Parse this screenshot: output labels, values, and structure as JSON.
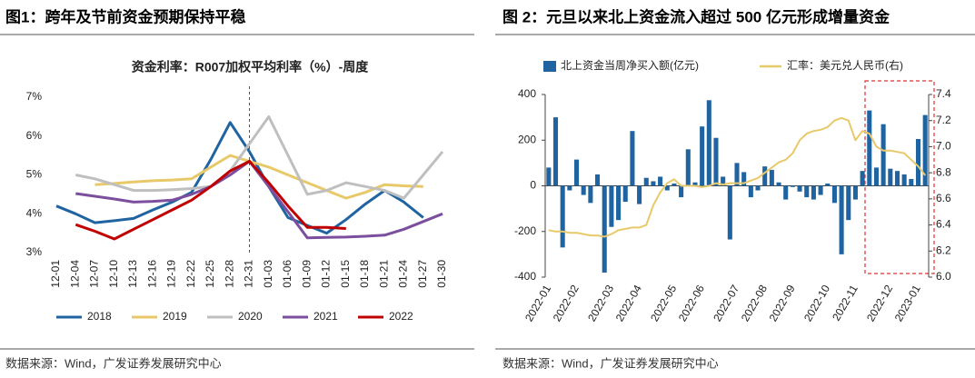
{
  "figures": [
    {
      "caption": "图1：跨年及节前资金预期保持平稳",
      "source": "数据来源：Wind，广发证券发展研究中心"
    },
    {
      "caption": "图 2：元旦以来北上资金流入超过 500 亿元形成增量资金",
      "source": "数据来源：Wind，广发证券发展研究中心"
    }
  ],
  "chart_data": [
    {
      "type": "line",
      "title": "资金利率：R007加权平均利率（%）-周度",
      "grid": false,
      "legend": "bottom",
      "vline": "12-31",
      "categories": [
        "12-01",
        "12-04",
        "12-07",
        "12-10",
        "12-13",
        "12-16",
        "12-19",
        "12-22",
        "12-25",
        "12-28",
        "12-31",
        "01-03",
        "01-06",
        "01-09",
        "01-12",
        "01-15",
        "01-18",
        "01-21",
        "01-24",
        "01-27",
        "01-30"
      ],
      "ylim": [
        3,
        7
      ],
      "yticks": [
        {
          "value": 3,
          "label": "3%"
        },
        {
          "value": 4,
          "label": "4%"
        },
        {
          "value": 5,
          "label": "5%"
        },
        {
          "value": 6,
          "label": "6%"
        },
        {
          "value": 7,
          "label": "7%"
        }
      ],
      "series": [
        {
          "name": "2018",
          "color": "#1f64a0",
          "values": [
            4.2,
            4.0,
            3.77,
            3.82,
            3.88,
            4.1,
            4.3,
            4.55,
            5.4,
            6.35,
            5.6,
            4.7,
            3.9,
            3.7,
            3.5,
            3.85,
            4.25,
            4.6,
            4.3,
            3.9,
            null
          ]
        },
        {
          "name": "2019",
          "color": "#e8c96a",
          "values": [
            null,
            null,
            4.75,
            4.78,
            4.82,
            4.85,
            4.87,
            4.9,
            5.2,
            5.5,
            5.35,
            5.2,
            5.0,
            4.8,
            4.6,
            4.4,
            4.55,
            4.75,
            4.72,
            4.7,
            null
          ]
        },
        {
          "name": "2020",
          "color": "#bfbfbf",
          "values": [
            null,
            5.0,
            4.9,
            4.75,
            4.6,
            4.6,
            4.62,
            4.65,
            4.7,
            5.1,
            5.8,
            6.5,
            5.5,
            4.5,
            4.6,
            4.8,
            4.7,
            4.6,
            4.4,
            5.0,
            5.6
          ]
        },
        {
          "name": "2021",
          "color": "#7b4e9e",
          "values": [
            null,
            4.52,
            4.45,
            4.38,
            4.3,
            4.32,
            4.35,
            4.5,
            4.7,
            5.0,
            5.35,
            4.7,
            4.05,
            3.38,
            3.39,
            3.4,
            3.42,
            3.45,
            3.6,
            3.8,
            4.0
          ]
        },
        {
          "name": "2022",
          "color": "#c00000",
          "values": [
            null,
            3.72,
            3.55,
            3.35,
            3.6,
            3.85,
            4.1,
            4.35,
            4.7,
            5.1,
            5.35,
            4.8,
            4.2,
            3.65,
            3.65,
            3.62,
            null,
            null,
            null,
            null,
            null
          ]
        }
      ]
    },
    {
      "type": "bar",
      "grid": false,
      "legend": "top",
      "categories": [
        "2022-01",
        null,
        null,
        null,
        "2022-02",
        null,
        null,
        null,
        null,
        "2022-03",
        null,
        null,
        null,
        "2022-04",
        null,
        null,
        null,
        null,
        "2022-05",
        null,
        null,
        null,
        "2022-06",
        null,
        null,
        null,
        null,
        "2022-07",
        null,
        null,
        null,
        "2022-08",
        null,
        null,
        null,
        "2022-09",
        null,
        null,
        null,
        null,
        "2022-10",
        null,
        null,
        null,
        "2022-11",
        null,
        null,
        null,
        null,
        "2022-12",
        null,
        null,
        null,
        "2023-01",
        null
      ],
      "ylim": [
        -400,
        400
      ],
      "yticks": [
        -400,
        -200,
        0,
        200,
        400
      ],
      "y2lim": [
        6.0,
        7.4
      ],
      "y2ticks": [
        {
          "value": 6.0,
          "label": "6.0"
        },
        {
          "value": 6.2,
          "label": "6.2"
        },
        {
          "value": 6.4,
          "label": "6.4"
        },
        {
          "value": 6.6,
          "label": "6.6"
        },
        {
          "value": 6.8,
          "label": "6.8"
        },
        {
          "value": 7.0,
          "label": "7.0"
        },
        {
          "value": 7.2,
          "label": "7.2"
        },
        {
          "value": 7.4,
          "label": "7.4"
        }
      ],
      "series": [
        {
          "name": "北上资金当周净买入额(亿元)",
          "color": "#1f64a0",
          "values": [
            80,
            300,
            -270,
            -20,
            115,
            -40,
            -75,
            50,
            -380,
            -180,
            -150,
            -70,
            240,
            -80,
            35,
            20,
            40,
            -20,
            10,
            -50,
            160,
            15,
            260,
            375,
            210,
            40,
            -235,
            100,
            60,
            -50,
            -20,
            85,
            70,
            15,
            -60,
            -5,
            -25,
            -50,
            -60,
            -40,
            10,
            -75,
            -300,
            -150,
            -60,
            65,
            330,
            80,
            270,
            75,
            65,
            50,
            30,
            205,
            310
          ]
        },
        {
          "name": "汇率：美元兑人民币(右)",
          "color": "#e8c96a",
          "axis": "y2",
          "values": [
            6.36,
            6.35,
            6.35,
            6.34,
            6.34,
            6.33,
            6.32,
            6.32,
            6.31,
            6.33,
            6.36,
            6.37,
            6.38,
            6.38,
            6.4,
            6.55,
            6.65,
            6.72,
            6.75,
            6.7,
            6.7,
            6.7,
            6.69,
            6.7,
            6.72,
            6.71,
            6.72,
            6.72,
            6.72,
            6.74,
            6.76,
            6.8,
            6.84,
            6.88,
            6.9,
            6.95,
            7.05,
            7.1,
            7.12,
            7.13,
            7.15,
            7.2,
            7.22,
            7.2,
            7.05,
            7.12,
            7.1,
            7.0,
            6.97,
            6.97,
            6.96,
            6.95,
            6.9,
            6.85,
            6.78
          ]
        }
      ]
    }
  ]
}
